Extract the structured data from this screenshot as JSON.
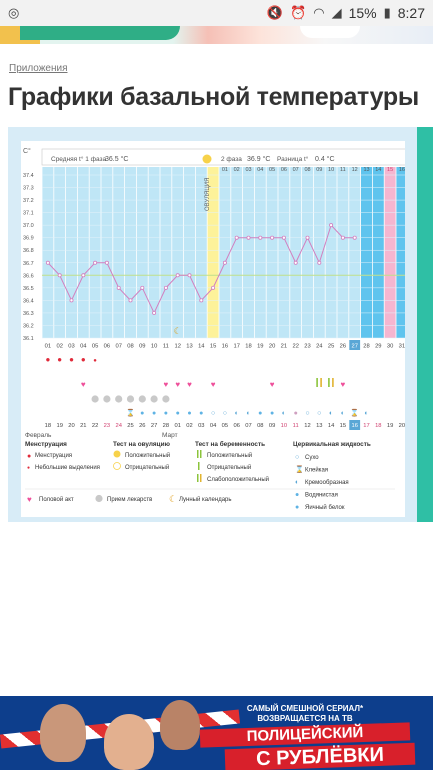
{
  "status_bar": {
    "app_icon": "instagram-icon",
    "battery": "15%",
    "time": "8:27",
    "icons": [
      "mute-icon",
      "alarm-icon",
      "wifi-icon",
      "signal-icon",
      "battery-icon"
    ]
  },
  "breadcrumb": "Приложения",
  "title": "Графики базальной температуры",
  "ad": {
    "line1": "САМЫЙ СМЕШНОЙ СЕРИАЛ*",
    "line2": "ВОЗВРАЩАЕТСЯ НА ТВ",
    "title1": "ПОЛИЦЕЙСКИЙ",
    "title2": "С РУБЛЁВКИ"
  },
  "chart_data": {
    "type": "line",
    "ylabel": "С°",
    "y_ticks": [
      "37.4",
      "37.3",
      "37.2",
      "37.1",
      "37.0",
      "36.9",
      "36.8",
      "36.7",
      "36.6",
      "36.5",
      "36.4",
      "36.3",
      "36.2",
      "36.1"
    ],
    "ylim": [
      36.1,
      37.4
    ],
    "phase1": {
      "label": "Средняя t° 1 фаза",
      "value": "36.5 °С"
    },
    "phase2": {
      "label": "2 фаза",
      "value": "36.9 °С"
    },
    "diff": {
      "label": "Разница t°",
      "value": "0.4 °С"
    },
    "ovulation_label": "ОВУЛЯЦИЯ",
    "ovulation_day": 15,
    "coverline": 36.6,
    "days": [
      "01",
      "02",
      "03",
      "04",
      "05",
      "06",
      "07",
      "08",
      "09",
      "10",
      "11",
      "12",
      "13",
      "14",
      "15",
      "16",
      "17",
      "18",
      "19",
      "20",
      "21",
      "22",
      "23",
      "24",
      "25",
      "26",
      "27",
      "28",
      "29",
      "30",
      "31"
    ],
    "today_day": "27",
    "phase2_day_labels": [
      "01",
      "02",
      "03",
      "04",
      "05",
      "06",
      "07",
      "08",
      "09",
      "10",
      "11",
      "12",
      "13",
      "14",
      "15",
      "16"
    ],
    "highlight_day_label": "15",
    "temperatures": [
      36.7,
      36.6,
      36.4,
      36.6,
      36.7,
      36.7,
      36.5,
      36.4,
      36.5,
      36.3,
      36.5,
      36.6,
      36.6,
      36.4,
      36.5,
      36.7,
      36.9,
      36.9,
      36.9,
      36.9,
      36.9,
      36.7,
      36.9,
      36.7,
      37.0,
      36.9,
      36.9
    ],
    "moon_day": 12,
    "calendar_days": [
      "18",
      "19",
      "20",
      "21",
      "22",
      "23",
      "24",
      "25",
      "26",
      "27",
      "28",
      "01",
      "02",
      "03",
      "04",
      "05",
      "06",
      "07",
      "08",
      "09",
      "10",
      "11",
      "12",
      "13",
      "14",
      "15",
      "16",
      "17",
      "18",
      "19",
      "20"
    ],
    "calendar_today_index": 26,
    "calendar_red_indices": [
      5,
      6,
      20,
      21,
      27,
      28
    ],
    "month_feb": "Февраль",
    "month_mar": "Март",
    "rows": {
      "menstruation": [
        1,
        1,
        1,
        1,
        0,
        0,
        0,
        0,
        0,
        0,
        0,
        0,
        0,
        0,
        0,
        0,
        0,
        0,
        0,
        0,
        0,
        0,
        0,
        0,
        0,
        0,
        0,
        0,
        0,
        0,
        0
      ],
      "discharge": [
        1,
        1,
        1,
        1,
        1,
        0,
        0,
        0,
        0,
        0,
        0,
        0,
        0,
        0,
        0,
        0,
        0,
        0,
        0,
        0,
        0,
        0,
        0,
        0,
        0,
        0,
        0,
        0,
        0,
        0,
        0
      ],
      "sex": [
        0,
        0,
        0,
        1,
        0,
        0,
        0,
        0,
        0,
        0,
        1,
        1,
        1,
        0,
        1,
        0,
        0,
        0,
        0,
        1,
        0,
        0,
        0,
        0,
        0,
        1,
        0,
        0,
        0,
        0,
        0
      ],
      "pregnancy_test": [
        0,
        0,
        0,
        0,
        0,
        0,
        0,
        0,
        0,
        0,
        0,
        0,
        0,
        0,
        0,
        0,
        0,
        0,
        0,
        0,
        0,
        0,
        0,
        1,
        1,
        0,
        0,
        0,
        0,
        0,
        0
      ],
      "pills": [
        0,
        0,
        0,
        0,
        1,
        1,
        1,
        1,
        1,
        1,
        1,
        0,
        0,
        0,
        0,
        0,
        0,
        0,
        0,
        0,
        0,
        0,
        0,
        0,
        0,
        0,
        0,
        0,
        0,
        0,
        0
      ],
      "cervical": [
        "",
        "",
        "",
        "",
        "",
        "",
        "",
        "k",
        "w",
        "w",
        "w",
        "w",
        "b",
        "b",
        "s",
        "s",
        "m",
        "m",
        "w",
        "w",
        "m",
        "y",
        "s",
        "s",
        "m",
        "m",
        "k",
        "m",
        "",
        "",
        ""
      ]
    },
    "legend": {
      "menstruation": {
        "title": "Менструация",
        "items": [
          "Менструация",
          "Небольшие выделения"
        ]
      },
      "ovulation_test": {
        "title": "Тест на овуляцию",
        "items": [
          "Положительный",
          "Отрицательный"
        ]
      },
      "pregnancy_test": {
        "title": "Тест на беременность",
        "items": [
          "Положительный",
          "Отрицательный",
          "Слабоположительный"
        ]
      },
      "cervical": {
        "title": "Цервикальная жидкость",
        "items": [
          "Сухо",
          "Клейкая",
          "Кремообразная",
          "Водянистая",
          "Яичный белок"
        ]
      },
      "bottom": [
        "Половой акт",
        "Прием лекарств",
        "Лунный календарь"
      ]
    },
    "colors": {
      "phase1": "#bfe6f6",
      "phase2": "#bfe6f6",
      "ovulation": "#fdf29a",
      "line": "#d27fbf",
      "pink_col": "#f5b6d0",
      "blue_col": "#5fc4ee",
      "menstruation": "#e02a3a",
      "heart": "#ee4f9a",
      "teal": "#2fbfa5",
      "coverline": "#bfe08a"
    }
  }
}
